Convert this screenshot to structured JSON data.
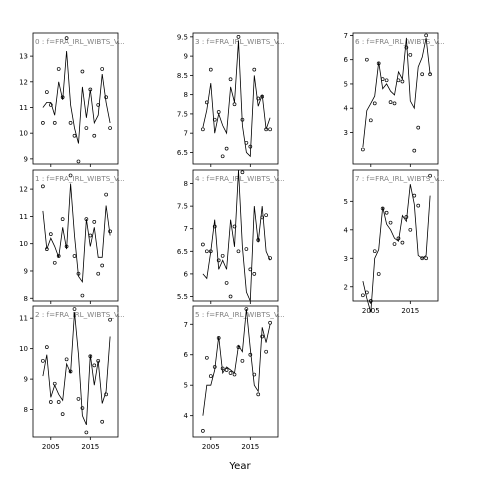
{
  "figure": {
    "xlabel": "Year"
  },
  "chart_data": [
    {
      "type": "line",
      "title": "0 : f=FRA_IRL_WIBTS_V...",
      "xlim": [
        2000.5,
        2022
      ],
      "ylim": [
        8.8,
        13.9
      ],
      "xticks": [
        2005,
        2015
      ],
      "yticks": [
        9,
        10,
        11,
        12,
        13
      ],
      "series": [
        {
          "kind": "fitted_line",
          "x": [
            2003,
            2004,
            2005,
            2006,
            2007,
            2008,
            2009,
            2010,
            2011,
            2012,
            2013,
            2014,
            2015,
            2016,
            2017,
            2018,
            2019,
            2020
          ],
          "y": [
            11.0,
            11.2,
            11.2,
            10.7,
            12.0,
            11.3,
            13.2,
            11.1,
            10.2,
            9.6,
            11.8,
            10.6,
            11.7,
            10.4,
            10.7,
            12.3,
            11.2,
            10.4
          ]
        },
        {
          "kind": "observed_points",
          "x": [
            2003,
            2004,
            2005,
            2006,
            2007,
            2008,
            2009,
            2010,
            2011,
            2012,
            2013,
            2014,
            2015,
            2016,
            2017,
            2018,
            2019,
            2020
          ],
          "y": [
            10.4,
            11.6,
            11.1,
            10.4,
            12.5,
            11.4,
            13.7,
            10.4,
            9.9,
            8.9,
            12.4,
            10.2,
            11.7,
            9.9,
            11.1,
            12.5,
            11.4,
            10.2
          ]
        }
      ]
    },
    {
      "type": "line",
      "title": "3 : f=FRA_IRL_WIBTS_V...",
      "xlim": [
        2000.5,
        2022
      ],
      "ylim": [
        6.2,
        9.6
      ],
      "xticks": [
        2005,
        2015
      ],
      "yticks": [
        6.5,
        7.0,
        7.5,
        8.0,
        8.5,
        9.0,
        9.5
      ],
      "series": [
        {
          "kind": "fitted_line",
          "x": [
            2003,
            2004,
            2005,
            2006,
            2007,
            2008,
            2009,
            2010,
            2011,
            2012,
            2013,
            2014,
            2015,
            2016,
            2017,
            2018,
            2019,
            2020
          ],
          "y": [
            7.15,
            7.6,
            8.3,
            7.0,
            7.5,
            7.2,
            7.0,
            8.2,
            7.8,
            9.4,
            7.2,
            6.5,
            6.4,
            8.5,
            7.7,
            8.0,
            7.1,
            7.4
          ]
        },
        {
          "kind": "observed_points",
          "x": [
            2003,
            2004,
            2005,
            2006,
            2007,
            2008,
            2009,
            2010,
            2011,
            2012,
            2013,
            2014,
            2015,
            2016,
            2017,
            2018,
            2019,
            2020
          ],
          "y": [
            7.1,
            7.8,
            8.65,
            7.35,
            7.55,
            6.4,
            6.6,
            8.4,
            7.75,
            9.5,
            7.35,
            6.75,
            6.65,
            8.65,
            7.9,
            7.95,
            7.1,
            7.1
          ]
        }
      ]
    },
    {
      "type": "line",
      "title": "6 : f=FRA_IRL_WIBTS_V...",
      "xlim": [
        2000.5,
        2022
      ],
      "ylim": [
        1.7,
        7.1
      ],
      "xticks": [
        2005,
        2015
      ],
      "yticks": [
        3,
        4,
        5,
        6,
        7
      ],
      "series": [
        {
          "kind": "fitted_line",
          "x": [
            2003,
            2004,
            2005,
            2006,
            2007,
            2008,
            2009,
            2010,
            2011,
            2012,
            2013,
            2014,
            2015,
            2016,
            2017,
            2018,
            2019,
            2020
          ],
          "y": [
            2.4,
            3.9,
            4.2,
            4.5,
            5.9,
            4.8,
            5.0,
            4.7,
            4.55,
            5.5,
            5.2,
            6.9,
            4.3,
            4.0,
            5.7,
            6.1,
            6.9,
            5.4
          ]
        },
        {
          "kind": "observed_points",
          "x": [
            2003,
            2004,
            2005,
            2006,
            2007,
            2008,
            2009,
            2010,
            2011,
            2012,
            2013,
            2014,
            2015,
            2016,
            2017,
            2018,
            2019,
            2020
          ],
          "y": [
            2.3,
            6.0,
            3.5,
            4.2,
            5.85,
            5.2,
            5.15,
            4.25,
            4.2,
            5.15,
            5.1,
            6.5,
            6.2,
            2.25,
            3.2,
            5.4,
            7.0,
            5.4
          ]
        }
      ]
    },
    {
      "type": "line",
      "title": "1 : f=FRA_IRL_WIBTS_V...",
      "xlim": [
        2000.5,
        2022
      ],
      "ylim": [
        7.9,
        12.7
      ],
      "xticks": [
        2005,
        2015
      ],
      "yticks": [
        8,
        9,
        10,
        11,
        12
      ],
      "series": [
        {
          "kind": "fitted_line",
          "x": [
            2003,
            2004,
            2005,
            2006,
            2007,
            2008,
            2009,
            2010,
            2011,
            2012,
            2013,
            2014,
            2015,
            2016,
            2017,
            2018,
            2019,
            2020
          ],
          "y": [
            11.2,
            9.8,
            10.2,
            9.9,
            9.5,
            10.6,
            9.8,
            12.2,
            10.3,
            8.8,
            8.6,
            10.9,
            9.9,
            10.6,
            9.5,
            9.5,
            11.4,
            10.3
          ]
        },
        {
          "kind": "observed_points",
          "x": [
            2003,
            2004,
            2005,
            2006,
            2007,
            2008,
            2009,
            2010,
            2011,
            2012,
            2013,
            2014,
            2015,
            2016,
            2017,
            2018,
            2019,
            2020
          ],
          "y": [
            12.1,
            9.8,
            10.35,
            9.3,
            9.55,
            10.9,
            9.9,
            12.5,
            9.55,
            8.9,
            8.1,
            10.9,
            10.3,
            10.8,
            8.9,
            9.2,
            11.8,
            10.45
          ]
        }
      ]
    },
    {
      "type": "line",
      "title": "4 : f=FRA_IRL_WIBTS_V...",
      "xlim": [
        2000.5,
        2022
      ],
      "ylim": [
        5.4,
        8.3
      ],
      "xticks": [
        2005,
        2015
      ],
      "yticks": [
        5.5,
        6.0,
        6.5,
        7.0,
        7.5,
        8.0
      ],
      "series": [
        {
          "kind": "fitted_line",
          "x": [
            2003,
            2004,
            2005,
            2006,
            2007,
            2008,
            2009,
            2010,
            2011,
            2012,
            2013,
            2014,
            2015,
            2016,
            2017,
            2018,
            2019,
            2020
          ],
          "y": [
            6.0,
            5.9,
            6.5,
            7.2,
            6.1,
            6.3,
            6.1,
            7.2,
            6.6,
            8.3,
            6.6,
            5.6,
            5.4,
            7.5,
            6.7,
            7.5,
            6.5,
            6.3
          ]
        },
        {
          "kind": "observed_points",
          "x": [
            2003,
            2004,
            2005,
            2006,
            2007,
            2008,
            2009,
            2010,
            2011,
            2012,
            2013,
            2014,
            2015,
            2016,
            2017,
            2018,
            2019,
            2020
          ],
          "y": [
            6.65,
            6.5,
            6.5,
            7.05,
            6.3,
            6.4,
            5.8,
            5.5,
            7.05,
            6.5,
            8.25,
            6.55,
            6.1,
            6.0,
            6.75,
            7.25,
            7.3,
            6.35
          ]
        }
      ]
    },
    {
      "type": "line",
      "title": "7 : f=FRA_IRL_WIBTS_V...",
      "xlim": [
        2000.5,
        2022
      ],
      "ylim": [
        1.5,
        6.1
      ],
      "xticks": [
        2005,
        2015
      ],
      "yticks": [
        2,
        3,
        4,
        5
      ],
      "series": [
        {
          "kind": "fitted_line",
          "x": [
            2003,
            2004,
            2005,
            2006,
            2007,
            2008,
            2009,
            2010,
            2011,
            2012,
            2013,
            2014,
            2015,
            2016,
            2017,
            2018,
            2019,
            2020
          ],
          "y": [
            2.2,
            1.6,
            1.1,
            3.0,
            3.3,
            4.8,
            4.2,
            4.0,
            3.7,
            3.6,
            4.5,
            4.3,
            5.6,
            4.9,
            3.1,
            3.0,
            3.1,
            5.2
          ]
        },
        {
          "kind": "observed_points",
          "x": [
            2003,
            2004,
            2005,
            2006,
            2007,
            2008,
            2009,
            2010,
            2011,
            2012,
            2013,
            2014,
            2015,
            2016,
            2017,
            2018,
            2019,
            2020
          ],
          "y": [
            1.7,
            1.8,
            1.5,
            3.25,
            2.45,
            4.75,
            4.6,
            4.25,
            3.5,
            3.7,
            3.55,
            4.45,
            4.0,
            5.2,
            4.85,
            3.0,
            3.0,
            5.9
          ]
        }
      ]
    },
    {
      "type": "line",
      "title": "2 : f=FRA_IRL_WIBTS_V...",
      "xlim": [
        2000.5,
        2022
      ],
      "ylim": [
        7.1,
        11.4
      ],
      "xticks": [
        2005,
        2015
      ],
      "yticks": [
        8,
        9,
        10,
        11
      ],
      "series": [
        {
          "kind": "fitted_line",
          "x": [
            2003,
            2004,
            2005,
            2006,
            2007,
            2008,
            2009,
            2010,
            2011,
            2012,
            2013,
            2014,
            2015,
            2016,
            2017,
            2018,
            2019,
            2020
          ],
          "y": [
            9.1,
            9.8,
            8.4,
            8.8,
            8.5,
            8.3,
            9.5,
            9.2,
            11.2,
            9.8,
            7.8,
            7.5,
            9.8,
            8.8,
            9.6,
            8.2,
            8.6,
            10.4
          ]
        },
        {
          "kind": "observed_points",
          "x": [
            2003,
            2004,
            2005,
            2006,
            2007,
            2008,
            2009,
            2010,
            2011,
            2012,
            2013,
            2014,
            2015,
            2016,
            2017,
            2018,
            2019,
            2020
          ],
          "y": [
            9.6,
            10.05,
            8.25,
            8.85,
            8.25,
            7.85,
            9.65,
            9.25,
            11.3,
            8.35,
            8.05,
            7.25,
            9.75,
            9.45,
            9.6,
            7.6,
            8.5,
            10.95
          ]
        }
      ]
    },
    {
      "type": "line",
      "title": "5 : f=FRA_IRL_WIBTS_V...",
      "xlim": [
        2000.5,
        2022
      ],
      "ylim": [
        3.3,
        7.6
      ],
      "xticks": [
        2005,
        2015
      ],
      "yticks": [
        4,
        5,
        6,
        7
      ],
      "series": [
        {
          "kind": "fitted_line",
          "x": [
            2003,
            2004,
            2005,
            2006,
            2007,
            2008,
            2009,
            2010,
            2011,
            2012,
            2013,
            2014,
            2015,
            2016,
            2017,
            2018,
            2019,
            2020
          ],
          "y": [
            4.0,
            5.0,
            5.0,
            5.5,
            6.6,
            5.4,
            5.6,
            5.5,
            5.4,
            6.3,
            6.1,
            7.5,
            6.2,
            5.0,
            4.8,
            6.9,
            6.4,
            7.0
          ]
        },
        {
          "kind": "observed_points",
          "x": [
            2003,
            2004,
            2005,
            2006,
            2007,
            2008,
            2009,
            2010,
            2011,
            2012,
            2013,
            2014,
            2015,
            2016,
            2017,
            2018,
            2019,
            2020
          ],
          "y": [
            3.5,
            5.9,
            5.3,
            5.6,
            6.55,
            5.55,
            5.5,
            5.4,
            5.35,
            6.25,
            5.8,
            7.5,
            6.0,
            5.35,
            4.7,
            6.6,
            6.1,
            7.05
          ]
        }
      ]
    }
  ]
}
